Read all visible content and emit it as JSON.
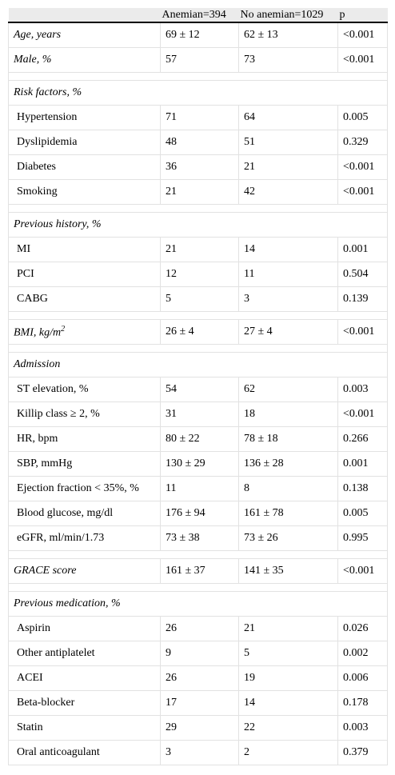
{
  "table": {
    "header": [
      "Anemian=394",
      "No anemian=1029",
      "p"
    ],
    "groups": [
      {
        "label_italic": true,
        "rows": [
          [
            "Age, years",
            "69 ± 12",
            "62 ± 13",
            "<0.001"
          ],
          [
            "Male, %",
            "57",
            "73",
            "<0.001"
          ]
        ]
      },
      {
        "title": "Risk factors, %",
        "rows": [
          [
            "Hypertension",
            "71",
            "64",
            "0.005"
          ],
          [
            "Dyslipidemia",
            "48",
            "51",
            "0.329"
          ],
          [
            "Diabetes",
            "36",
            "21",
            "<0.001"
          ],
          [
            "Smoking",
            "21",
            "42",
            "<0.001"
          ]
        ]
      },
      {
        "title": "Previous history, %",
        "rows": [
          [
            "MI",
            "21",
            "14",
            "0.001"
          ],
          [
            "PCI",
            "12",
            "11",
            "0.504"
          ],
          [
            "CABG",
            "5",
            "3",
            "0.139"
          ]
        ]
      },
      {
        "label_italic": true,
        "rows": [
          [
            "BMI, kg/m",
            "26 ± 4",
            "27 ± 4",
            "<0.001"
          ]
        ],
        "label_sup": "2"
      },
      {
        "title": "Admission",
        "rows": [
          [
            "ST elevation, %",
            "54",
            "62",
            "0.003"
          ],
          [
            "Killip class ≥ 2, %",
            "31",
            "18",
            "<0.001"
          ],
          [
            "HR, bpm",
            "80 ± 22",
            "78 ± 18",
            "0.266"
          ],
          [
            "SBP, mmHg",
            "130 ± 29",
            "136 ± 28",
            "0.001"
          ],
          [
            "Ejection fraction < 35%, %",
            "11",
            "8",
            "0.138"
          ],
          [
            "Blood glucose, mg/dl",
            "176 ± 94",
            "161 ± 78",
            "0.005"
          ],
          [
            "eGFR, ml/min/1.73",
            "73 ± 38",
            "73 ± 26",
            "0.995"
          ]
        ]
      },
      {
        "label_italic": true,
        "rows": [
          [
            "GRACE score",
            "161 ± 37",
            "141 ± 35",
            "<0.001"
          ]
        ]
      },
      {
        "title": "Previous medication, %",
        "rows": [
          [
            "Aspirin",
            "26",
            "21",
            "0.026"
          ],
          [
            "Other antiplatelet",
            "9",
            "5",
            "0.002"
          ],
          [
            "ACEI",
            "26",
            "19",
            "0.006"
          ],
          [
            "Beta-blocker",
            "17",
            "14",
            "0.178"
          ],
          [
            "Statin",
            "29",
            "22",
            "0.003"
          ],
          [
            "Oral anticoagulant",
            "3",
            "2",
            "0.379"
          ]
        ]
      }
    ]
  }
}
